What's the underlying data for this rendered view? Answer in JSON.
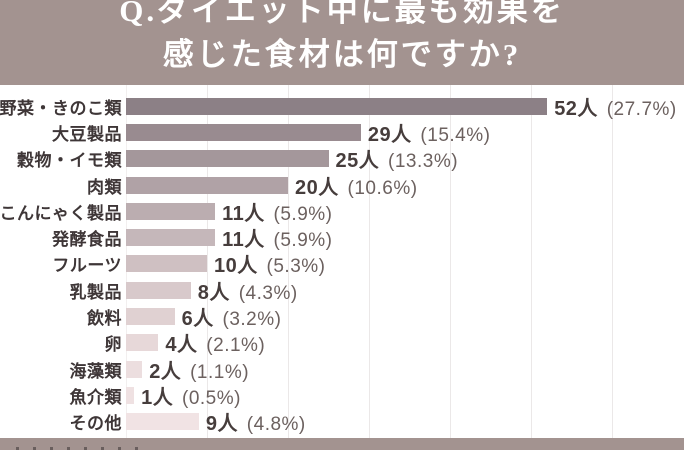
{
  "header": {
    "title_line1": "Q.ダイエット中に最も効果を",
    "title_line2": "感じた食材は何ですか?",
    "bg_color": "#a39390",
    "text_color": "#ffffff"
  },
  "chart_data": {
    "type": "bar",
    "orientation": "horizontal",
    "title": "Q.ダイエット中に最も効果を感じた食材は何ですか?",
    "unit_suffix": "人",
    "categories": [
      "野菜・きのこ類",
      "大豆製品",
      "穀物・イモ類",
      "肉類",
      "こんにゃく製品",
      "発酵食品",
      "フルーツ",
      "乳製品",
      "飲料",
      "卵",
      "海藻類",
      "魚介類",
      "その他"
    ],
    "values": [
      52,
      29,
      25,
      20,
      11,
      11,
      10,
      8,
      6,
      4,
      2,
      1,
      9
    ],
    "percent_labels": [
      "27.7%",
      "15.4%",
      "13.3%",
      "10.6%",
      "5.9%",
      "5.9%",
      "5.3%",
      "4.3%",
      "3.2%",
      "2.1%",
      "1.1%",
      "0.5%",
      "4.8%"
    ],
    "value_label_format": "{value}人 ({percent})",
    "bar_colors": [
      "#8c8086",
      "#998b90",
      "#a4979b",
      "#b0a2a6",
      "#bbadb0",
      "#c5b7ba",
      "#cfc0c2",
      "#d8c9cb",
      "#e0d1d2",
      "#e7d8d9",
      "#ecdedf",
      "#efe1e2",
      "#f1e3e4"
    ],
    "xlim": [
      0,
      66
    ],
    "gridline_values": [
      0,
      10,
      20,
      30,
      40,
      50,
      60
    ],
    "grid": true,
    "legend": false,
    "label_text_color": "#3e3637",
    "value_text_color": "#463d3c",
    "percent_text_color": "#6c615f",
    "gridline_color": "#ebe8e8"
  },
  "footer": {
    "bg_color": "#a39390"
  }
}
